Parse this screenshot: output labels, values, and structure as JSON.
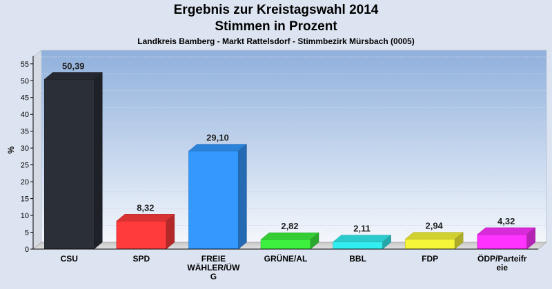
{
  "chart_data": {
    "type": "bar",
    "title": "Ergebnis zur Kreistagswahl 2014",
    "subtitle": "Stimmen in Prozent",
    "caption": "Landkreis Bamberg - Markt Rattelsdorf - Stimmbezirk Mürsbach (0005)",
    "ylabel": "%",
    "xlabel": "",
    "ylim": [
      0,
      57
    ],
    "yticks": [
      0,
      5,
      10,
      15,
      20,
      25,
      30,
      35,
      40,
      45,
      50,
      55
    ],
    "grid": true,
    "categories": [
      "CSU",
      "SPD",
      "FREIE WÄHLER/ÜWG",
      "GRÜNE/AL",
      "BBL",
      "FDP",
      "ÖDP/Parteifreie"
    ],
    "category_lines": [
      [
        "CSU"
      ],
      [
        "SPD"
      ],
      [
        "FREIE",
        "WÄHLER/ÜW",
        "G"
      ],
      [
        "GRÜNE/AL"
      ],
      [
        "BBL"
      ],
      [
        "FDP"
      ],
      [
        "ÖDP/Parteifr",
        "eie"
      ]
    ],
    "values": [
      50.39,
      8.32,
      29.1,
      2.82,
      2.11,
      2.94,
      4.32
    ],
    "labels": [
      "50,39",
      "8,32",
      "29,10",
      "2,82",
      "2,11",
      "2,94",
      "4,32"
    ],
    "colors": [
      "#2b2f38",
      "#ff3b3b",
      "#3399ff",
      "#3ef03e",
      "#33eef0",
      "#f5f53a",
      "#ff33ff"
    ]
  }
}
